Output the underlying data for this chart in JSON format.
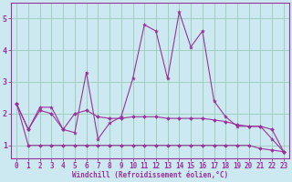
{
  "xlabel": "Windchill (Refroidissement éolien,°C)",
  "background_color": "#cce8f0",
  "grid_color": "#99ccbb",
  "line_color": "#993399",
  "xlim": [
    -0.5,
    23.5
  ],
  "ylim": [
    0.6,
    5.5
  ],
  "yticks": [
    1,
    2,
    3,
    4,
    5
  ],
  "xticks": [
    0,
    1,
    2,
    3,
    4,
    5,
    6,
    7,
    8,
    9,
    10,
    11,
    12,
    13,
    14,
    15,
    16,
    17,
    18,
    19,
    20,
    21,
    22,
    23
  ],
  "series1_x": [
    0,
    1,
    2,
    3,
    4,
    5,
    6,
    7,
    8,
    9,
    10,
    11,
    12,
    13,
    14,
    15,
    16,
    17,
    18,
    19,
    20,
    21,
    22,
    23
  ],
  "series1_y": [
    2.3,
    1.5,
    2.2,
    2.2,
    1.5,
    1.4,
    3.3,
    1.2,
    1.7,
    1.9,
    3.1,
    4.8,
    4.6,
    3.1,
    5.2,
    4.1,
    4.6,
    2.4,
    1.9,
    1.6,
    1.6,
    1.6,
    1.2,
    0.8
  ],
  "series2_x": [
    0,
    1,
    2,
    3,
    4,
    5,
    6,
    7,
    8,
    9,
    10,
    11,
    12,
    13,
    14,
    15,
    16,
    17,
    18,
    19,
    20,
    21,
    22,
    23
  ],
  "series2_y": [
    2.3,
    1.5,
    2.1,
    2.0,
    1.5,
    2.0,
    2.1,
    1.9,
    1.85,
    1.85,
    1.9,
    1.9,
    1.9,
    1.85,
    1.85,
    1.85,
    1.85,
    1.8,
    1.75,
    1.65,
    1.6,
    1.6,
    1.5,
    0.8
  ],
  "series3_x": [
    0,
    1,
    2,
    3,
    4,
    5,
    6,
    7,
    8,
    9,
    10,
    11,
    12,
    13,
    14,
    15,
    16,
    17,
    18,
    19,
    20,
    21,
    22,
    23
  ],
  "series3_y": [
    2.3,
    1.0,
    1.0,
    1.0,
    1.0,
    1.0,
    1.0,
    1.0,
    1.0,
    1.0,
    1.0,
    1.0,
    1.0,
    1.0,
    1.0,
    1.0,
    1.0,
    1.0,
    1.0,
    1.0,
    1.0,
    0.9,
    0.85,
    0.8
  ],
  "tick_fontsize": 5.5,
  "xlabel_fontsize": 5.5
}
